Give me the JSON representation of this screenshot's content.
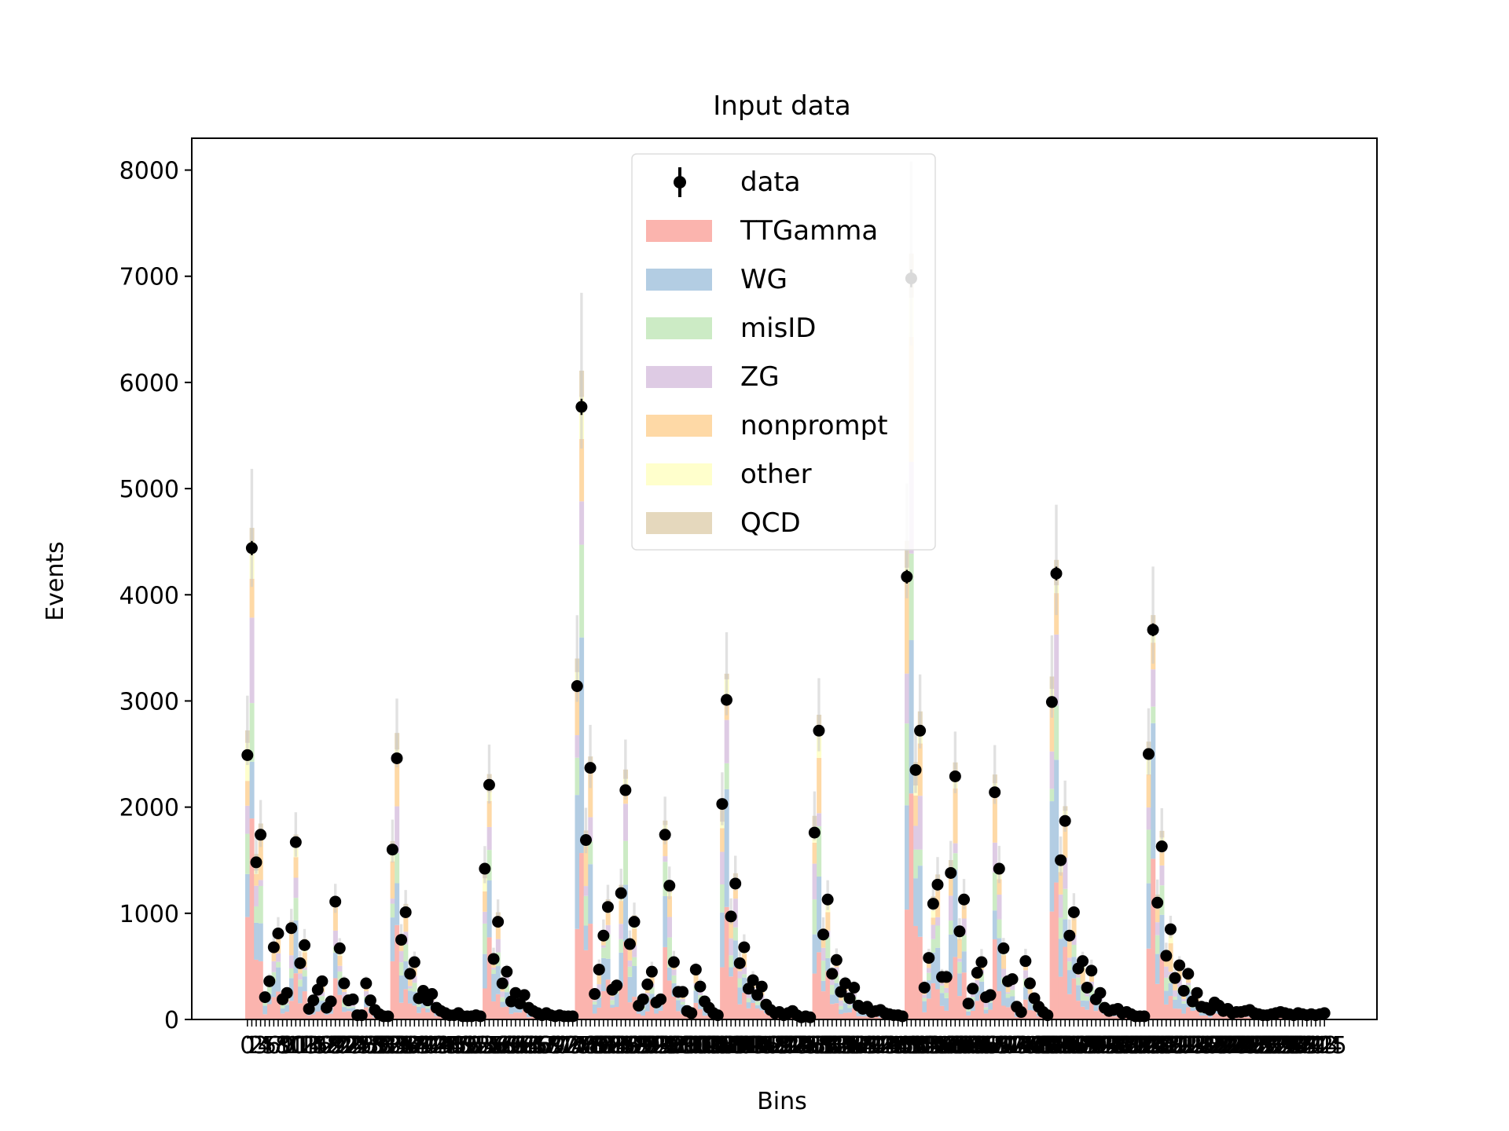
{
  "chart_data": {
    "type": "bar",
    "stacked": true,
    "title": "Input data",
    "xlabel": "Bins",
    "ylabel": "Events",
    "ylim": [
      0,
      8300
    ],
    "yticks": [
      0,
      1000,
      2000,
      3000,
      4000,
      5000,
      6000,
      7000,
      8000
    ],
    "xtick_labels_shown": "0 … 245 (one tick per bin, labels overlapping)",
    "x_first_label": "0",
    "x_last_label": "245",
    "legend_position": "upper-center",
    "legend": [
      "data",
      "TTGamma",
      "WG",
      "misID",
      "ZG",
      "nonprompt",
      "other",
      "QCD"
    ],
    "series": [
      {
        "name": "TTGamma",
        "color": "#fbb4ae"
      },
      {
        "name": "WG",
        "color": "#b3cde3"
      },
      {
        "name": "misID",
        "color": "#ccebc5"
      },
      {
        "name": "ZG",
        "color": "#decbe4"
      },
      {
        "name": "nonprompt",
        "color": "#fed9a6"
      },
      {
        "name": "other",
        "color": "#ffffcc"
      },
      {
        "name": "QCD",
        "color": "#e5d8bd"
      }
    ],
    "data_series": {
      "name": "data",
      "color": "#000000",
      "marker": "circle"
    },
    "uncertainty_band_color": "#c8c8c8",
    "data_values": [
      2490,
      4440,
      1480,
      1740,
      210,
      360,
      680,
      810,
      190,
      250,
      860,
      1670,
      530,
      700,
      100,
      180,
      280,
      360,
      110,
      170,
      1110,
      670,
      340,
      180,
      190,
      40,
      40,
      340,
      180,
      90,
      50,
      30,
      30,
      1600,
      2460,
      750,
      1010,
      430,
      540,
      200,
      270,
      180,
      240,
      110,
      80,
      60,
      40,
      40,
      60,
      30,
      30,
      30,
      40,
      30,
      1420,
      2210,
      570,
      920,
      340,
      450,
      170,
      250,
      150,
      230,
      110,
      80,
      60,
      40,
      60,
      40,
      30,
      40,
      30,
      30,
      30,
      3140,
      5770,
      1690,
      2370,
      240,
      470,
      790,
      1060,
      280,
      320,
      1190,
      2160,
      710,
      920,
      130,
      190,
      330,
      450,
      160,
      190,
      1740,
      1260,
      540,
      260,
      260,
      80,
      60,
      470,
      310,
      170,
      110,
      60,
      40,
      2030,
      3010,
      970,
      1280,
      530,
      680,
      290,
      370,
      230,
      310,
      140,
      90,
      60,
      70,
      40,
      60,
      80,
      40,
      20,
      30,
      20,
      1760,
      2720,
      800,
      1130,
      430,
      560,
      260,
      340,
      200,
      300,
      130,
      100,
      120,
      70,
      80,
      90,
      60,
      50,
      40,
      40,
      30,
      4170,
      6980,
      2350,
      2720,
      300,
      580,
      1090,
      1270,
      400,
      400,
      1380,
      2290,
      830,
      1130,
      150,
      290,
      440,
      540,
      210,
      230,
      2140,
      1420,
      670,
      360,
      380,
      120,
      70,
      550,
      340,
      200,
      120,
      70,
      40,
      2990,
      4200,
      1500,
      1870,
      790,
      1010,
      480,
      550,
      300,
      460,
      190,
      250,
      110,
      80,
      90,
      100,
      60,
      70,
      50,
      30,
      30,
      30,
      2500,
      3670,
      1100,
      1630,
      600,
      850,
      390,
      510,
      270,
      430,
      170,
      250,
      120,
      110,
      90,
      160,
      130,
      80,
      100,
      60,
      70,
      70,
      80,
      90,
      60,
      50,
      40,
      40,
      50,
      60,
      70,
      60,
      50,
      40,
      60,
      50,
      40,
      50,
      40,
      50,
      60
    ]
  }
}
